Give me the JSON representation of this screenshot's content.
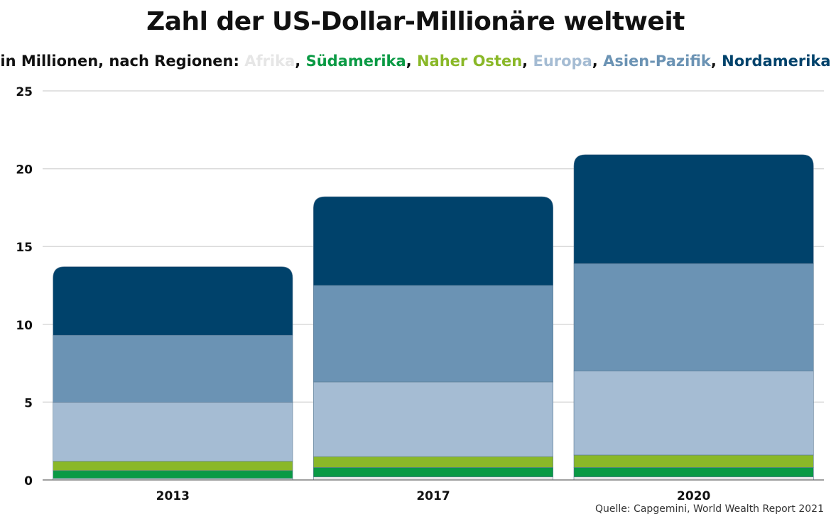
{
  "title": "Zahl der US-Dollar-Millionäre weltweit",
  "subtitle_prefix": "in Millionen, nach Regionen: ",
  "source": "Quelle: Capgemini, World Wealth Report 2021",
  "colors": {
    "Afrika": "#e6e6e6",
    "Südamerika": "#0a9a44",
    "Naher Osten": "#8ab828",
    "Europa": "#a5bcd3",
    "Asien-Pazifik": "#6b93b4",
    "Nordamerika": "#00426b"
  },
  "chart_data": {
    "type": "bar",
    "stacked": true,
    "title": "Zahl der US-Dollar-Millionäre weltweit",
    "subtitle": "in Millionen, nach Regionen: Afrika, Südamerika, Naher Osten, Europa, Asien-Pazifik, Nordamerika",
    "categories": [
      "2013",
      "2017",
      "2020"
    ],
    "series": [
      {
        "name": "Afrika",
        "values": [
          0.1,
          0.2,
          0.2
        ]
      },
      {
        "name": "Südamerika",
        "values": [
          0.5,
          0.6,
          0.6
        ]
      },
      {
        "name": "Naher Osten",
        "values": [
          0.6,
          0.7,
          0.8
        ]
      },
      {
        "name": "Europa",
        "values": [
          3.8,
          4.8,
          5.4
        ]
      },
      {
        "name": "Asien-Pazifik",
        "values": [
          4.3,
          6.2,
          6.9
        ]
      },
      {
        "name": "Nordamerika",
        "values": [
          4.4,
          5.7,
          7.0
        ]
      }
    ],
    "yticks": [
      0,
      5,
      10,
      15,
      20,
      25
    ],
    "ylim": [
      0,
      25
    ],
    "grid": true,
    "legend": "subtitle"
  }
}
